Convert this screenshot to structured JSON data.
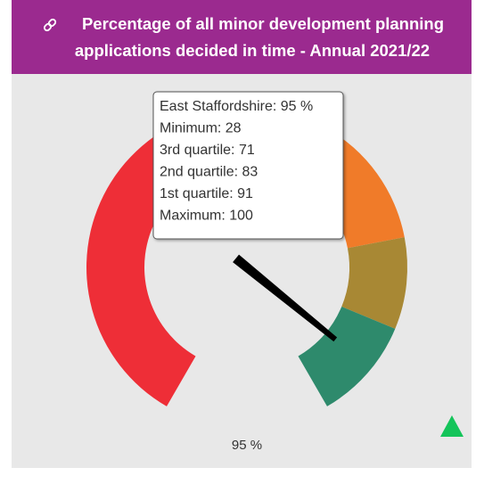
{
  "chart_data": {
    "type": "gauge",
    "title_lines": [
      "Percentage of all minor development planning",
      "applications decided in time - Annual 2021/22"
    ],
    "value": 95,
    "value_label": "95 %",
    "thresholds": [
      28,
      71,
      83,
      91,
      100
    ],
    "colors": [
      "#ee2e37",
      "#f07b29",
      "#a88834",
      "#2e8a6c"
    ],
    "needle_color": "#000000",
    "tooltip": [
      "East Staffordshire: 95 %",
      "Minimum: 28",
      "3rd quartile: 71",
      "2nd quartile: 83",
      "1st quartile: 91",
      "Maximum: 100"
    ]
  }
}
